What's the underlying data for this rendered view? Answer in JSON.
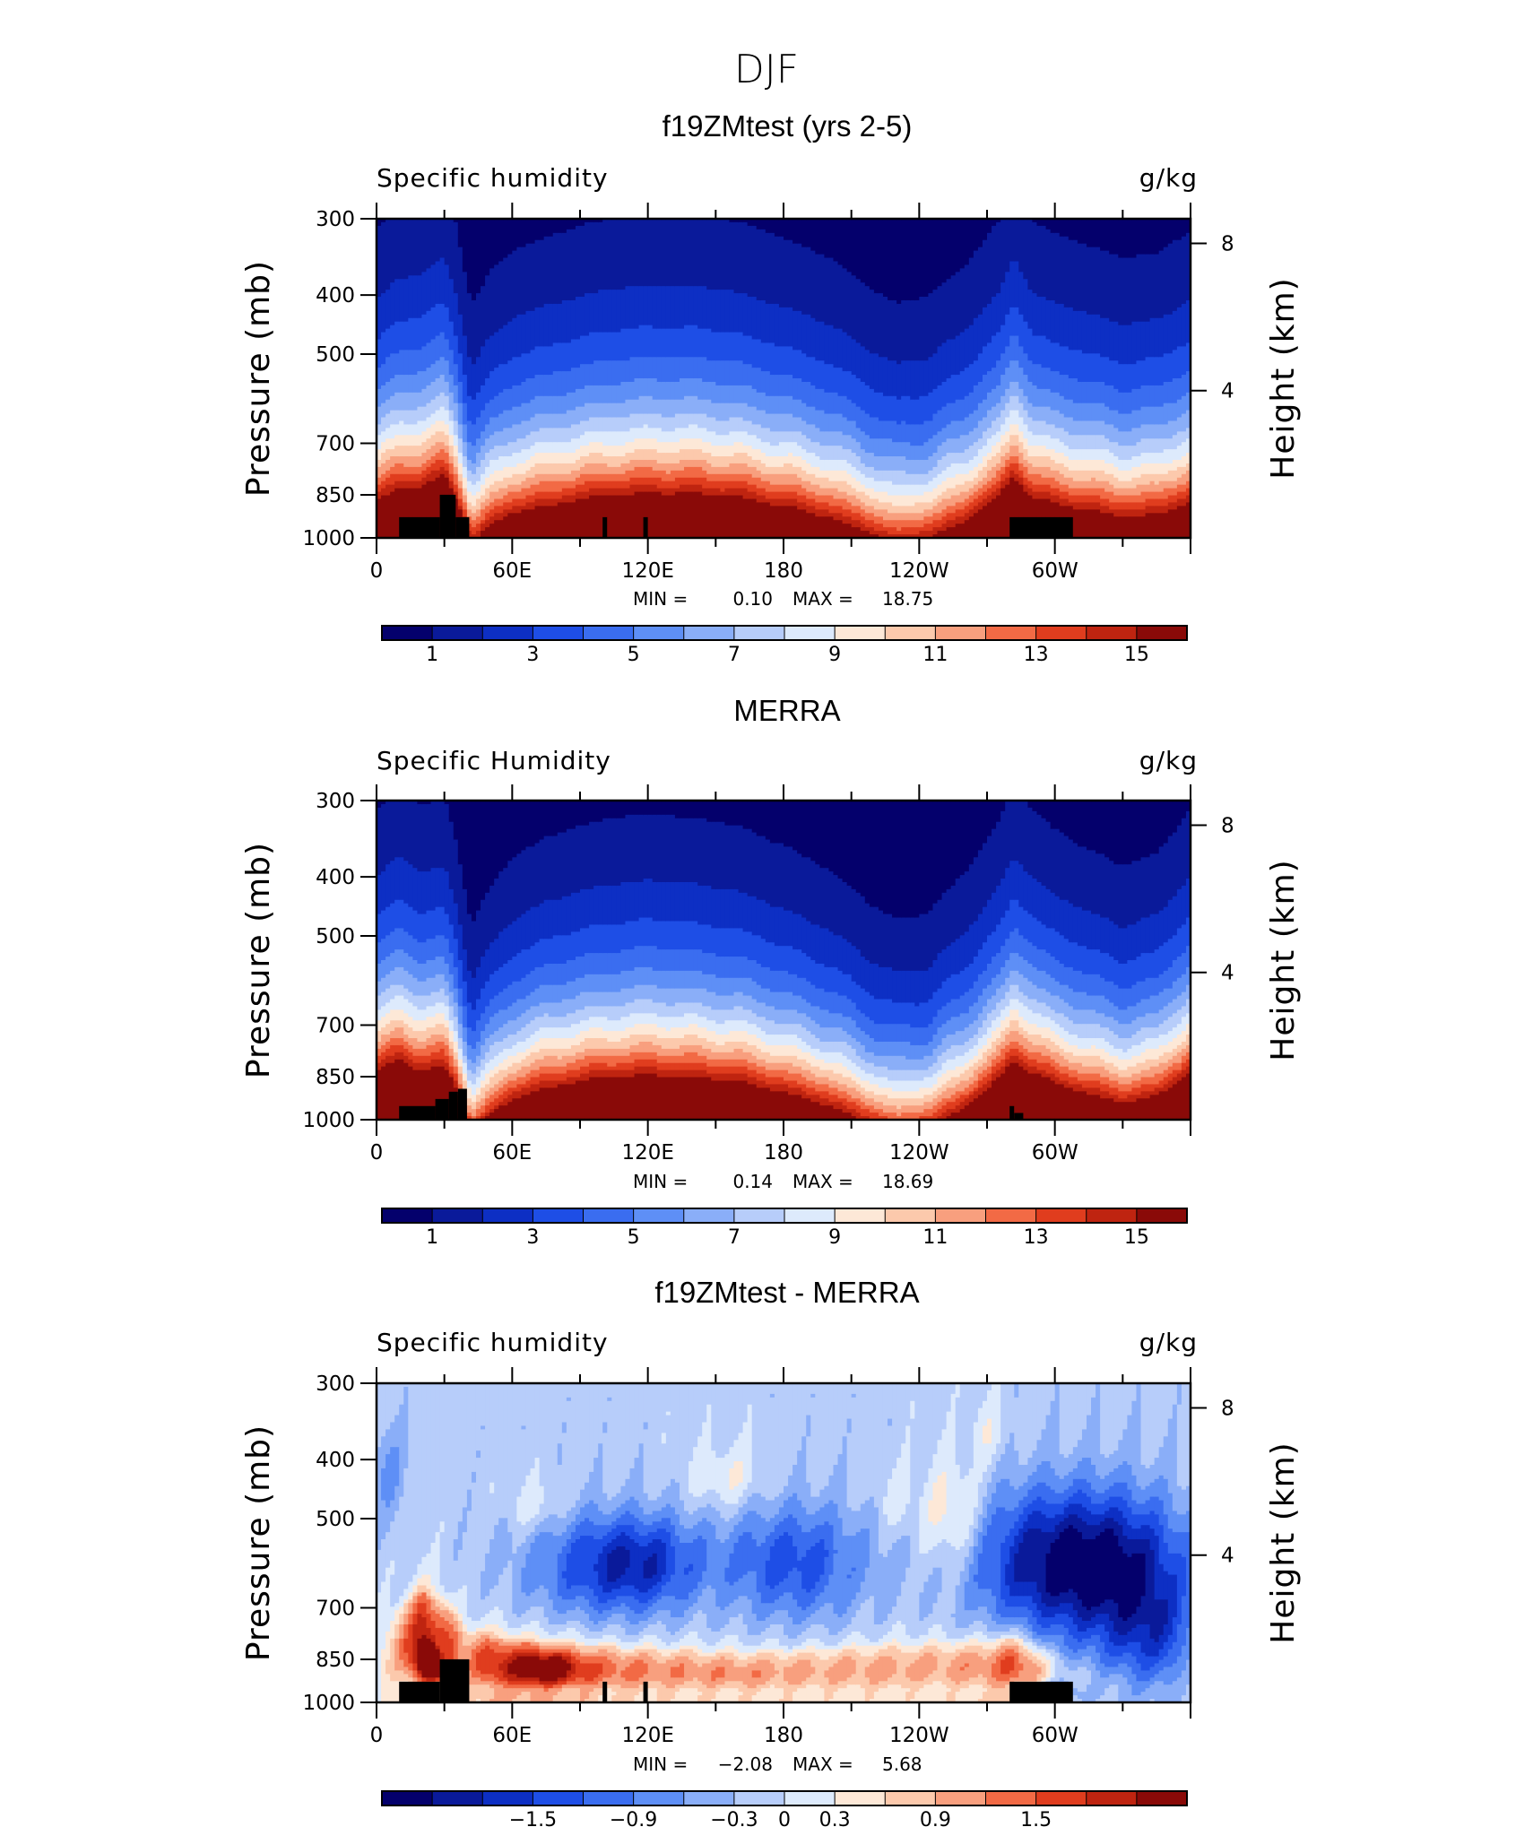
{
  "figure": {
    "title": "DJF"
  },
  "colors": {
    "abs_levels": [
      "#04006c",
      "#0a1a9a",
      "#0d2fc4",
      "#1e4ee6",
      "#3a6df0",
      "#5e8ff6",
      "#8aaef8",
      "#b7cdfa",
      "#ddeafc",
      "#fde8d7",
      "#fcc9ac",
      "#f89f7e",
      "#f26a45",
      "#e03d1e",
      "#bf2410",
      "#8a0a08"
    ],
    "diff_levels": [
      "#04006c",
      "#0a1a9a",
      "#0d2fc4",
      "#1e4ee6",
      "#3a6df0",
      "#5e8ff6",
      "#8aaef8",
      "#b7cdfa",
      "#ddeafc",
      "#fde8d7",
      "#fcc9ac",
      "#f89f7e",
      "#f26a45",
      "#e03d1e",
      "#bf2410",
      "#8a0a08"
    ],
    "topography": "#000000"
  },
  "chart_data": [
    {
      "type": "heatmap",
      "panel_title": "f19ZMtest (yrs 2-5)",
      "left_label": "Specific humidity",
      "right_label": "g/kg",
      "ylabel": "Pressure (mb)",
      "ylabel_right": "Height (km)",
      "y_ticks": [
        "300",
        "400",
        "500",
        "700",
        "850",
        "1000"
      ],
      "y_tick_values": [
        300,
        400,
        500,
        700,
        850,
        1000
      ],
      "y_right_ticks": [
        "8",
        "4"
      ],
      "x_ticks": [
        "0",
        "60E",
        "120E",
        "180",
        "120W",
        "60W"
      ],
      "x_tick_values": [
        0,
        60,
        120,
        180,
        240,
        300
      ],
      "xlim": [
        0,
        360
      ],
      "ylim": [
        1000,
        300
      ],
      "log_pressure_axis": true,
      "stats": {
        "min_label": "MIN =",
        "min": "0.10",
        "max_label": "MAX =",
        "max": "18.75"
      },
      "colorbar": {
        "levels": [
          1,
          2,
          3,
          4,
          5,
          6,
          7,
          8,
          9,
          10,
          11,
          12,
          13,
          14,
          15
        ],
        "labels": [
          "1",
          "3",
          "5",
          "7",
          "9",
          "11",
          "13",
          "15"
        ]
      },
      "field": {
        "kind": "abs",
        "surface": 18.7,
        "scale_height_km": 2.6,
        "low_value": 0.1,
        "profile_lon": [
          0,
          10,
          20,
          30,
          35,
          42,
          50,
          60,
          75,
          90,
          105,
          120,
          140,
          160,
          180,
          200,
          215,
          230,
          245,
          260,
          275,
          282,
          290,
          300,
          315,
          330,
          345,
          360
        ],
        "profile_shift_km": [
          0.7,
          1.3,
          1.4,
          1.9,
          0.9,
          -1.2,
          -0.4,
          0.2,
          0.5,
          0.8,
          1.0,
          1.1,
          1.1,
          0.9,
          0.5,
          0.0,
          -0.6,
          -1.2,
          -0.9,
          -0.2,
          0.9,
          1.9,
          0.9,
          0.6,
          0.3,
          0.0,
          0.1,
          0.7
        ]
      },
      "topography": [
        {
          "lon0": 10,
          "lon1": 28,
          "p_top": 925
        },
        {
          "lon0": 28,
          "lon1": 35,
          "p_top": 850
        },
        {
          "lon0": 35,
          "lon1": 41,
          "p_top": 925
        },
        {
          "lon0": 100,
          "lon1": 102,
          "p_top": 925
        },
        {
          "lon0": 118,
          "lon1": 120,
          "p_top": 925
        },
        {
          "lon0": 280,
          "lon1": 308,
          "p_top": 925
        }
      ]
    },
    {
      "type": "heatmap",
      "panel_title": "MERRA",
      "left_label": "Specific Humidity",
      "right_label": "g/kg",
      "ylabel": "Pressure (mb)",
      "ylabel_right": "Height (km)",
      "y_ticks": [
        "300",
        "400",
        "500",
        "700",
        "850",
        "1000"
      ],
      "y_tick_values": [
        300,
        400,
        500,
        700,
        850,
        1000
      ],
      "y_right_ticks": [
        "8",
        "4"
      ],
      "x_ticks": [
        "0",
        "60E",
        "120E",
        "180",
        "120W",
        "60W"
      ],
      "x_tick_values": [
        0,
        60,
        120,
        180,
        240,
        300
      ],
      "xlim": [
        0,
        360
      ],
      "ylim": [
        1000,
        300
      ],
      "log_pressure_axis": true,
      "stats": {
        "min_label": "MIN =",
        "min": "0.14",
        "max_label": "MAX =",
        "max": "18.69"
      },
      "colorbar": {
        "levels": [
          1,
          2,
          3,
          4,
          5,
          6,
          7,
          8,
          9,
          10,
          11,
          12,
          13,
          14,
          15
        ],
        "labels": [
          "1",
          "3",
          "5",
          "7",
          "9",
          "11",
          "13",
          "15"
        ]
      },
      "field": {
        "kind": "abs",
        "surface": 18.6,
        "scale_height_km": 2.4,
        "low_value": 0.14,
        "profile_lon": [
          0,
          10,
          20,
          30,
          35,
          42,
          50,
          60,
          75,
          90,
          105,
          120,
          140,
          160,
          180,
          200,
          215,
          230,
          245,
          260,
          275,
          282,
          290,
          300,
          315,
          330,
          345,
          360
        ],
        "profile_shift_km": [
          1.3,
          1.9,
          1.4,
          1.6,
          0.6,
          -1.6,
          -0.7,
          0.1,
          0.6,
          0.9,
          1.1,
          1.2,
          1.1,
          0.9,
          0.4,
          -0.2,
          -0.9,
          -1.5,
          -1.2,
          -0.3,
          1.0,
          1.9,
          1.3,
          0.8,
          0.3,
          -0.1,
          0.2,
          1.3
        ]
      },
      "topography": [
        {
          "lon0": 10,
          "lon1": 26,
          "p_top": 950
        },
        {
          "lon0": 26,
          "lon1": 32,
          "p_top": 925
        },
        {
          "lon0": 32,
          "lon1": 36,
          "p_top": 900
        },
        {
          "lon0": 36,
          "lon1": 40,
          "p_top": 890
        },
        {
          "lon0": 280,
          "lon1": 282,
          "p_top": 950
        },
        {
          "lon0": 282,
          "lon1": 286,
          "p_top": 975
        }
      ]
    },
    {
      "type": "heatmap",
      "panel_title": "f19ZMtest - MERRA",
      "left_label": "Specific humidity",
      "right_label": "g/kg",
      "ylabel": "Pressure (mb)",
      "ylabel_right": "Height (km)",
      "y_ticks": [
        "300",
        "400",
        "500",
        "700",
        "850",
        "1000"
      ],
      "y_tick_values": [
        300,
        400,
        500,
        700,
        850,
        1000
      ],
      "y_right_ticks": [
        "8",
        "4"
      ],
      "x_ticks": [
        "0",
        "60E",
        "120E",
        "180",
        "120W",
        "60W"
      ],
      "x_tick_values": [
        0,
        60,
        120,
        180,
        240,
        300
      ],
      "xlim": [
        0,
        360
      ],
      "ylim": [
        1000,
        300
      ],
      "log_pressure_axis": true,
      "stats": {
        "min_label": "MIN =",
        "min": "−2.08",
        "max_label": "MAX =",
        "max": "5.68"
      },
      "colorbar": {
        "levels": [
          -2.1,
          -1.8,
          -1.5,
          -1.2,
          -0.9,
          -0.6,
          -0.3,
          0,
          0.3,
          0.6,
          0.9,
          1.2,
          1.5,
          1.8,
          2.1
        ],
        "labels": [
          "−1.5",
          "−0.9",
          "−0.3",
          "0",
          "0.3",
          "0.9",
          "1.5"
        ]
      },
      "field": {
        "kind": "diff",
        "warm_lon": [
          0,
          10,
          20,
          30,
          40,
          50,
          70,
          100,
          130,
          160,
          190,
          220,
          250,
          270,
          280,
          290,
          300,
          310,
          330,
          350,
          360
        ],
        "warm_top": [
          760,
          700,
          660,
          690,
          760,
          780,
          800,
          810,
          820,
          830,
          820,
          810,
          800,
          790,
          780,
          800,
          830,
          860,
          900,
          930,
          760
        ],
        "warm_amp": [
          0.3,
          0.9,
          1.8,
          1.4,
          1.0,
          1.5,
          1.6,
          1.2,
          1.0,
          1.0,
          0.9,
          0.9,
          0.9,
          1.1,
          1.5,
          1.2,
          0.5,
          0.2,
          0.1,
          0.1,
          0.3
        ],
        "dry_blobs": [
          {
            "lon": 95,
            "p": 600,
            "w": 32,
            "h": 0.2,
            "a": -1.0
          },
          {
            "lon": 120,
            "p": 590,
            "w": 26,
            "h": 0.18,
            "a": -1.1
          },
          {
            "lon": 185,
            "p": 590,
            "w": 32,
            "h": 0.22,
            "a": -1.2
          },
          {
            "lon": 300,
            "p": 590,
            "w": 38,
            "h": 0.28,
            "a": -1.9
          },
          {
            "lon": 335,
            "p": 620,
            "w": 30,
            "h": 0.3,
            "a": -1.2
          },
          {
            "lon": 345,
            "p": 800,
            "w": 20,
            "h": 0.2,
            "a": -0.8
          },
          {
            "lon": 5,
            "p": 420,
            "w": 8,
            "h": 0.18,
            "a": -0.5
          },
          {
            "lon": 28,
            "p": 840,
            "w": 4,
            "h": 0.06,
            "a": -1.4
          },
          {
            "lon": 300,
            "p": 960,
            "w": 10,
            "h": 0.05,
            "a": -0.8
          }
        ],
        "moist_blobs": [
          {
            "lon": 70,
            "p": 480,
            "w": 12,
            "h": 0.1,
            "a": 0.4
          },
          {
            "lon": 155,
            "p": 430,
            "w": 16,
            "h": 0.12,
            "a": 0.5
          },
          {
            "lon": 255,
            "p": 500,
            "w": 14,
            "h": 0.22,
            "a": 0.8
          },
          {
            "lon": 270,
            "p": 360,
            "w": 8,
            "h": 0.12,
            "a": 0.4
          },
          {
            "lon": 230,
            "p": 470,
            "w": 10,
            "h": 0.12,
            "a": 0.3
          },
          {
            "lon": 25,
            "p": 860,
            "w": 6,
            "h": 0.06,
            "a": 2.6
          },
          {
            "lon": 75,
            "p": 880,
            "w": 14,
            "h": 0.06,
            "a": 0.9
          }
        ]
      },
      "topography": [
        {
          "lon0": 10,
          "lon1": 28,
          "p_top": 925
        },
        {
          "lon0": 28,
          "lon1": 41,
          "p_top": 850
        },
        {
          "lon0": 100,
          "lon1": 102,
          "p_top": 925
        },
        {
          "lon0": 118,
          "lon1": 120,
          "p_top": 925
        },
        {
          "lon0": 280,
          "lon1": 308,
          "p_top": 925
        }
      ]
    }
  ]
}
